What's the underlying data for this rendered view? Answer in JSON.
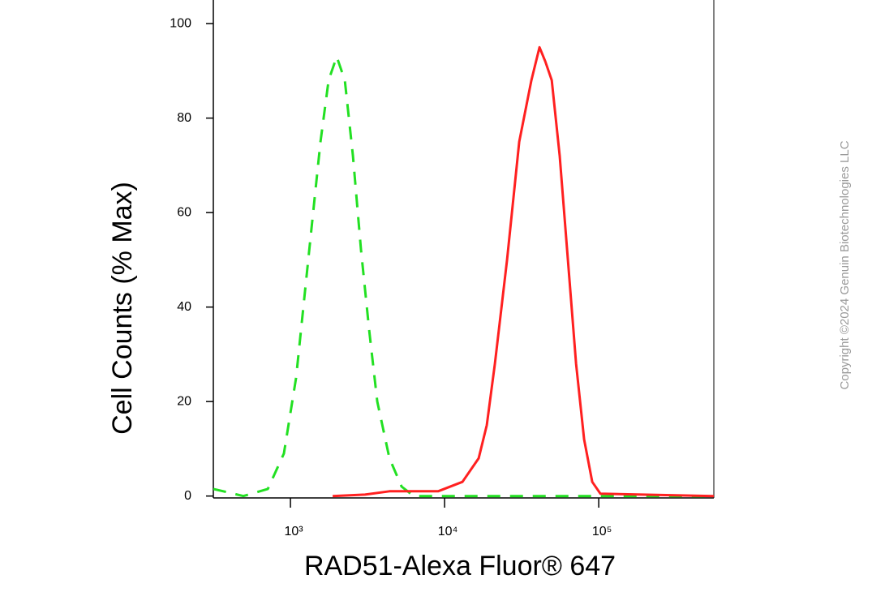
{
  "chart_data": {
    "type": "line",
    "xlabel": "RAD51-Alexa Fluor® 647",
    "ylabel": "Cell Counts (% Max)",
    "annotation": "Copyright ©2024 Genuin Biotechnologies LLC",
    "xscale": "log",
    "xlim": [
      316,
      558000
    ],
    "ylim": [
      -0.4,
      105
    ],
    "xticks": [
      {
        "value": 1000,
        "label": "10³"
      },
      {
        "value": 10000,
        "label": "10⁴"
      },
      {
        "value": 100000,
        "label": "10⁵"
      }
    ],
    "yticks": [
      0,
      20,
      40,
      60,
      80,
      100
    ],
    "grid": false,
    "series": [
      {
        "color": "#22e022",
        "dashed": true,
        "x": [
          316,
          495,
          713,
          907,
          1088,
          1305,
          1567,
          1767,
          1995,
          2253,
          2543,
          2871,
          3243,
          3657,
          4385,
          5260,
          6310,
          18790,
          63100,
          558000
        ],
        "values": [
          1.5,
          0,
          1.5,
          9,
          25,
          50,
          75,
          88,
          93,
          88,
          72,
          52,
          35,
          20,
          8,
          2,
          0,
          0,
          0,
          0
        ]
      },
      {
        "color": "#ff2020",
        "dashed": false,
        "x": [
          1879,
          3048,
          4385,
          9078,
          13050,
          16640,
          18790,
          21200,
          25410,
          30480,
          36560,
          41300,
          44970,
          49550,
          55850,
          63100,
          71270,
          80380,
          90780,
          102500,
          558000
        ],
        "values": [
          0,
          0.3,
          1,
          1,
          3,
          8,
          15,
          28,
          50,
          75,
          88,
          95,
          92,
          88,
          72,
          50,
          28,
          12,
          3,
          0.5,
          0
        ]
      }
    ]
  }
}
